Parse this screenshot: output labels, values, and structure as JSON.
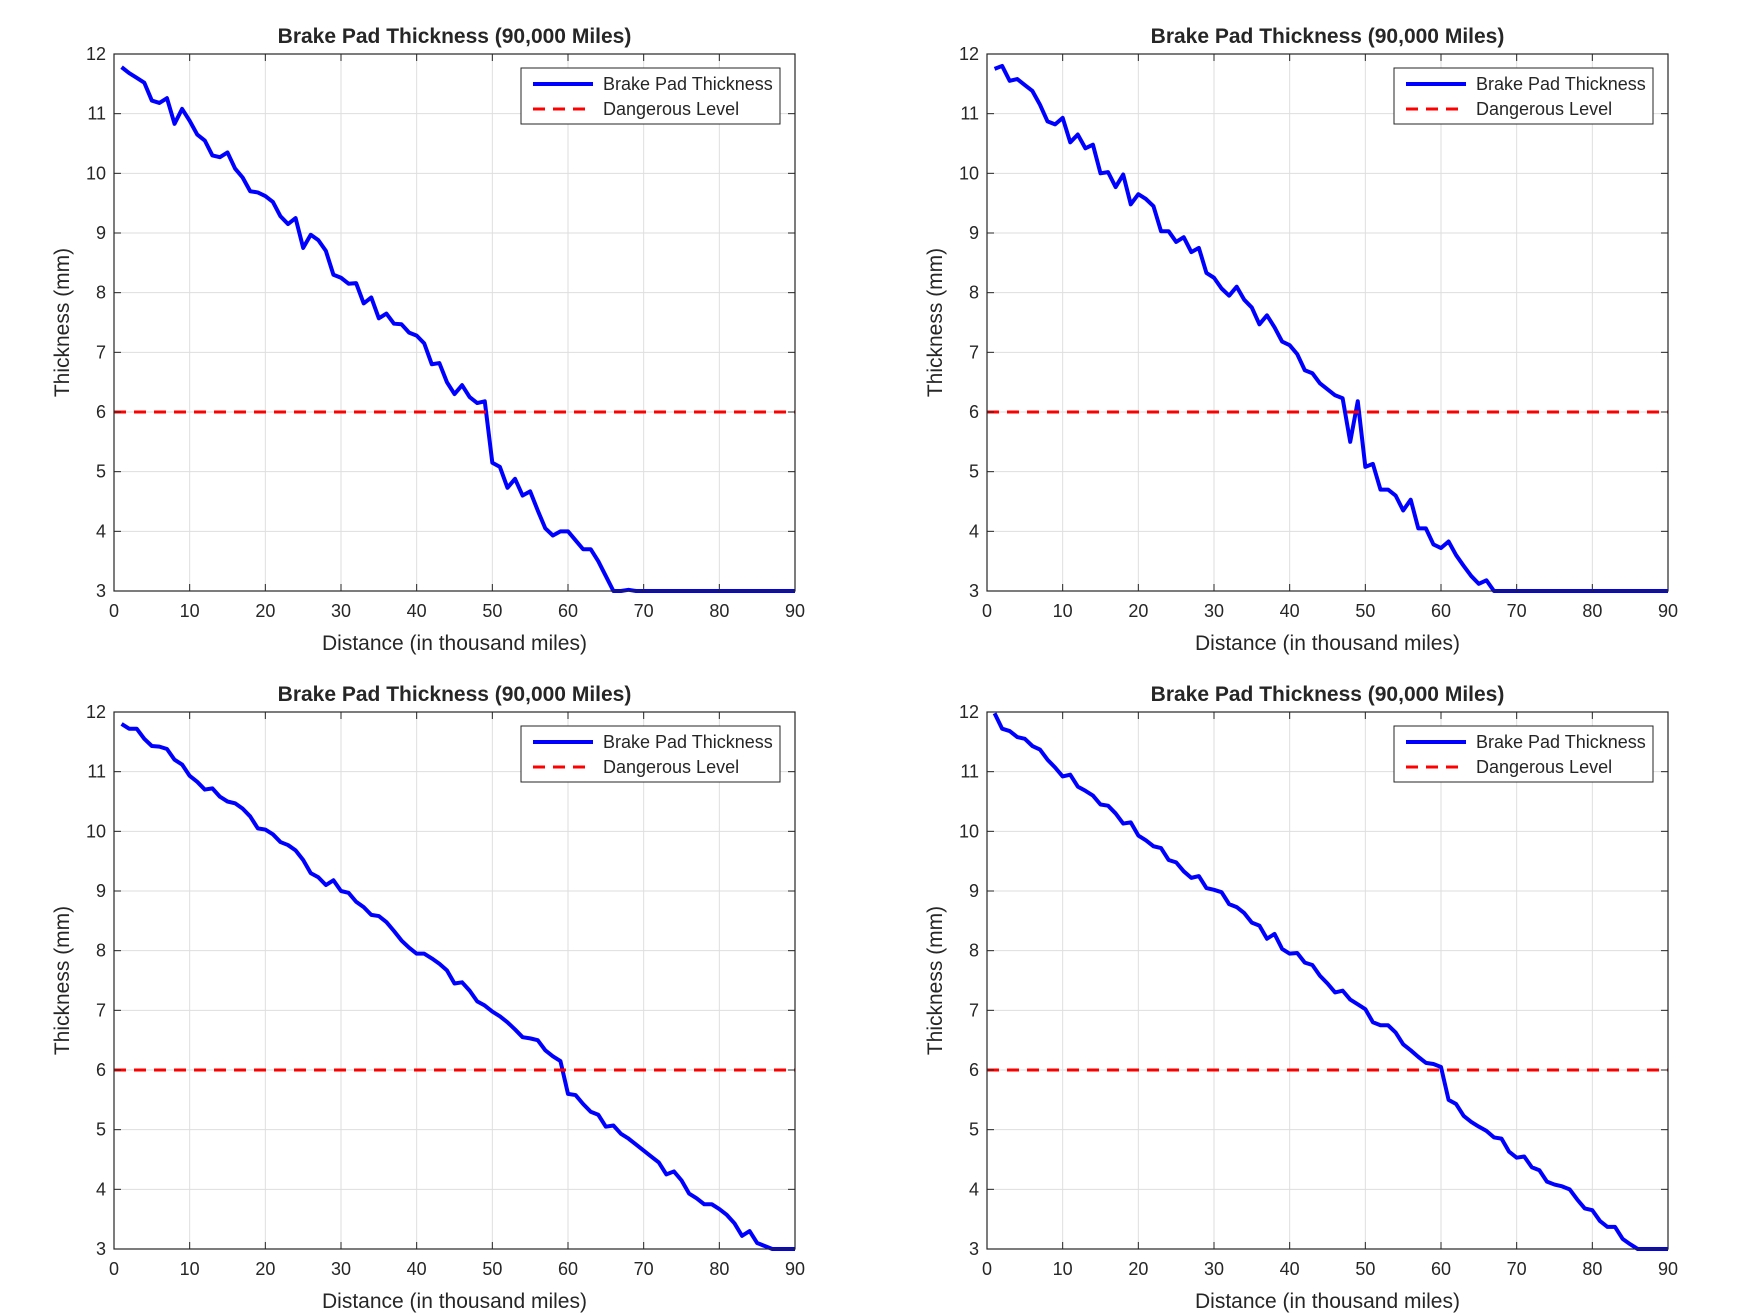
{
  "chart_data": [
    {
      "type": "line",
      "title": "Brake Pad Thickness (90,000 Miles)",
      "xlabel": "Distance (in thousand miles)",
      "ylabel": "Thickness (mm)",
      "xlim": [
        0,
        90
      ],
      "ylim": [
        3,
        12
      ],
      "xticks": [
        "0",
        "10",
        "20",
        "30",
        "40",
        "50",
        "60",
        "70",
        "80",
        "90"
      ],
      "yticks": [
        "3",
        "4",
        "5",
        "6",
        "7",
        "8",
        "9",
        "10",
        "11",
        "12"
      ],
      "grid": true,
      "legend_position": "top-right",
      "series": [
        {
          "name": "Brake Pad Thickness",
          "color": "#0000ff",
          "style": "solid",
          "x": [
            1,
            2,
            3,
            4,
            5,
            6,
            7,
            8,
            9,
            10,
            11,
            12,
            13,
            14,
            15,
            16,
            17,
            18,
            19,
            20,
            21,
            22,
            23,
            24,
            25,
            26,
            27,
            28,
            29,
            30,
            31,
            32,
            33,
            34,
            35,
            36,
            37,
            38,
            39,
            40,
            41,
            42,
            43,
            44,
            45,
            46,
            47,
            48,
            49,
            50,
            51,
            52,
            53,
            54,
            55,
            56,
            57,
            58,
            59,
            60,
            61,
            62,
            63,
            64,
            65,
            66,
            67,
            68,
            69,
            70,
            71,
            72,
            73,
            74,
            75,
            76,
            77,
            78,
            79,
            80,
            81,
            82,
            83,
            84,
            85,
            86,
            87,
            88,
            89,
            90
          ],
          "y": [
            11.78,
            11.68,
            11.6,
            11.52,
            11.22,
            11.18,
            11.26,
            10.83,
            11.08,
            10.88,
            10.65,
            10.55,
            10.3,
            10.27,
            10.35,
            10.08,
            9.93,
            9.7,
            9.68,
            9.62,
            9.52,
            9.28,
            9.15,
            9.25,
            8.75,
            8.97,
            8.88,
            8.7,
            8.3,
            8.25,
            8.15,
            8.16,
            7.82,
            7.92,
            7.57,
            7.65,
            7.48,
            7.47,
            7.33,
            7.28,
            7.15,
            6.8,
            6.82,
            6.5,
            6.3,
            6.45,
            6.25,
            6.15,
            6.18,
            5.15,
            5.08,
            4.73,
            4.88,
            4.6,
            4.67,
            4.35,
            4.05,
            3.93,
            4.0,
            4.0,
            3.85,
            3.7,
            3.7,
            3.5,
            3.25,
            3.0,
            3.0,
            3.02,
            3.0,
            3.0,
            3.0,
            3.0,
            3.0,
            3.0,
            3.0,
            3.0,
            3.0,
            3.0,
            3.0,
            3.0,
            3.0,
            3.0,
            3.0,
            3.0,
            3.0,
            3.0,
            3.0,
            3.0,
            3.0,
            3.0
          ]
        },
        {
          "name": "Dangerous Level",
          "color": "#ff0000",
          "style": "dashed",
          "x": [
            0,
            90
          ],
          "y": [
            6,
            6
          ]
        }
      ]
    },
    {
      "type": "line",
      "title": "Brake Pad Thickness (90,000 Miles)",
      "xlabel": "Distance (in thousand miles)",
      "ylabel": "Thickness (mm)",
      "xlim": [
        0,
        90
      ],
      "ylim": [
        3,
        12
      ],
      "xticks": [
        "0",
        "10",
        "20",
        "30",
        "40",
        "50",
        "60",
        "70",
        "80",
        "90"
      ],
      "yticks": [
        "3",
        "4",
        "5",
        "6",
        "7",
        "8",
        "9",
        "10",
        "11",
        "12"
      ],
      "grid": true,
      "legend_position": "top-right",
      "series": [
        {
          "name": "Brake Pad Thickness",
          "color": "#0000ff",
          "style": "solid",
          "x": [
            1,
            2,
            3,
            4,
            5,
            6,
            7,
            8,
            9,
            10,
            11,
            12,
            13,
            14,
            15,
            16,
            17,
            18,
            19,
            20,
            21,
            22,
            23,
            24,
            25,
            26,
            27,
            28,
            29,
            30,
            31,
            32,
            33,
            34,
            35,
            36,
            37,
            38,
            39,
            40,
            41,
            42,
            43,
            44,
            45,
            46,
            47,
            48,
            49,
            50,
            51,
            52,
            53,
            54,
            55,
            56,
            57,
            58,
            59,
            60,
            61,
            62,
            63,
            64,
            65,
            66,
            67,
            68,
            69,
            70,
            71,
            72,
            73,
            74,
            75,
            76,
            77,
            78,
            79,
            80,
            81,
            82,
            83,
            84,
            85,
            86,
            87,
            88,
            89,
            90
          ],
          "y": [
            11.75,
            11.8,
            11.55,
            11.58,
            11.48,
            11.38,
            11.15,
            10.87,
            10.82,
            10.93,
            10.52,
            10.65,
            10.42,
            10.48,
            10.0,
            10.02,
            9.77,
            9.98,
            9.48,
            9.65,
            9.57,
            9.45,
            9.03,
            9.03,
            8.85,
            8.93,
            8.68,
            8.75,
            8.33,
            8.25,
            8.07,
            7.95,
            8.1,
            7.88,
            7.75,
            7.47,
            7.62,
            7.42,
            7.18,
            7.12,
            6.97,
            6.7,
            6.65,
            6.48,
            6.38,
            6.28,
            6.23,
            5.5,
            6.18,
            5.08,
            5.13,
            4.7,
            4.7,
            4.6,
            4.35,
            4.53,
            4.05,
            4.05,
            3.78,
            3.72,
            3.83,
            3.6,
            3.42,
            3.25,
            3.12,
            3.18,
            3.0,
            3.0,
            3.0,
            3.0,
            3.0,
            3.0,
            3.0,
            3.0,
            3.0,
            3.0,
            3.0,
            3.0,
            3.0,
            3.0,
            3.0,
            3.0,
            3.0,
            3.0,
            3.0,
            3.0,
            3.0,
            3.0,
            3.0,
            3.0
          ]
        },
        {
          "name": "Dangerous Level",
          "color": "#ff0000",
          "style": "dashed",
          "x": [
            0,
            90
          ],
          "y": [
            6,
            6
          ]
        }
      ]
    },
    {
      "type": "line",
      "title": "Brake Pad Thickness (90,000 Miles)",
      "xlabel": "Distance (in thousand miles)",
      "ylabel": "Thickness (mm)",
      "xlim": [
        0,
        90
      ],
      "ylim": [
        3,
        12
      ],
      "xticks": [
        "0",
        "10",
        "20",
        "30",
        "40",
        "50",
        "60",
        "70",
        "80",
        "90"
      ],
      "yticks": [
        "3",
        "4",
        "5",
        "6",
        "7",
        "8",
        "9",
        "10",
        "11",
        "12"
      ],
      "grid": true,
      "legend_position": "top-right",
      "series": [
        {
          "name": "Brake Pad Thickness",
          "color": "#0000ff",
          "style": "solid",
          "x": [
            1,
            2,
            3,
            4,
            5,
            6,
            7,
            8,
            9,
            10,
            11,
            12,
            13,
            14,
            15,
            16,
            17,
            18,
            19,
            20,
            21,
            22,
            23,
            24,
            25,
            26,
            27,
            28,
            29,
            30,
            31,
            32,
            33,
            34,
            35,
            36,
            37,
            38,
            39,
            40,
            41,
            42,
            43,
            44,
            45,
            46,
            47,
            48,
            49,
            50,
            51,
            52,
            53,
            54,
            55,
            56,
            57,
            58,
            59,
            60,
            61,
            62,
            63,
            64,
            65,
            66,
            67,
            68,
            69,
            70,
            71,
            72,
            73,
            74,
            75,
            76,
            77,
            78,
            79,
            80,
            81,
            82,
            83,
            84,
            85,
            86,
            87,
            88,
            89,
            90
          ],
          "y": [
            11.8,
            11.72,
            11.72,
            11.55,
            11.43,
            11.42,
            11.38,
            11.2,
            11.12,
            10.93,
            10.83,
            10.7,
            10.72,
            10.58,
            10.5,
            10.47,
            10.38,
            10.25,
            10.05,
            10.03,
            9.95,
            9.82,
            9.77,
            9.68,
            9.52,
            9.3,
            9.23,
            9.1,
            9.18,
            9.0,
            8.97,
            8.82,
            8.73,
            8.6,
            8.58,
            8.48,
            8.33,
            8.17,
            8.05,
            7.95,
            7.95,
            7.87,
            7.78,
            7.67,
            7.45,
            7.47,
            7.33,
            7.15,
            7.08,
            6.98,
            6.9,
            6.8,
            6.68,
            6.55,
            6.53,
            6.5,
            6.33,
            6.23,
            6.15,
            5.6,
            5.58,
            5.43,
            5.3,
            5.25,
            5.05,
            5.07,
            4.93,
            4.85,
            4.75,
            4.65,
            4.55,
            4.45,
            4.25,
            4.3,
            4.15,
            3.93,
            3.85,
            3.75,
            3.75,
            3.67,
            3.57,
            3.43,
            3.22,
            3.3,
            3.1,
            3.05,
            3.0,
            3.0,
            3.0,
            3.0
          ]
        },
        {
          "name": "Dangerous Level",
          "color": "#ff0000",
          "style": "dashed",
          "x": [
            0,
            90
          ],
          "y": [
            6,
            6
          ]
        }
      ]
    },
    {
      "type": "line",
      "title": "Brake Pad Thickness (90,000 Miles)",
      "xlabel": "Distance (in thousand miles)",
      "ylabel": "Thickness (mm)",
      "xlim": [
        0,
        90
      ],
      "ylim": [
        3,
        12
      ],
      "xticks": [
        "0",
        "10",
        "20",
        "30",
        "40",
        "50",
        "60",
        "70",
        "80",
        "90"
      ],
      "yticks": [
        "3",
        "4",
        "5",
        "6",
        "7",
        "8",
        "9",
        "10",
        "11",
        "12"
      ],
      "grid": true,
      "legend_position": "top-right",
      "series": [
        {
          "name": "Brake Pad Thickness",
          "color": "#0000ff",
          "style": "solid",
          "x": [
            1,
            2,
            3,
            4,
            5,
            6,
            7,
            8,
            9,
            10,
            11,
            12,
            13,
            14,
            15,
            16,
            17,
            18,
            19,
            20,
            21,
            22,
            23,
            24,
            25,
            26,
            27,
            28,
            29,
            30,
            31,
            32,
            33,
            34,
            35,
            36,
            37,
            38,
            39,
            40,
            41,
            42,
            43,
            44,
            45,
            46,
            47,
            48,
            49,
            50,
            51,
            52,
            53,
            54,
            55,
            56,
            57,
            58,
            59,
            60,
            61,
            62,
            63,
            64,
            65,
            66,
            67,
            68,
            69,
            70,
            71,
            72,
            73,
            74,
            75,
            76,
            77,
            78,
            79,
            80,
            81,
            82,
            83,
            84,
            85,
            86,
            87,
            88,
            89,
            90
          ],
          "y": [
            11.98,
            11.72,
            11.68,
            11.58,
            11.55,
            11.43,
            11.37,
            11.2,
            11.07,
            10.92,
            10.95,
            10.75,
            10.68,
            10.6,
            10.45,
            10.43,
            10.3,
            10.13,
            10.15,
            9.93,
            9.85,
            9.75,
            9.72,
            9.52,
            9.48,
            9.33,
            9.22,
            9.25,
            9.05,
            9.02,
            8.98,
            8.78,
            8.73,
            8.63,
            8.47,
            8.42,
            8.2,
            8.28,
            8.03,
            7.95,
            7.96,
            7.8,
            7.76,
            7.58,
            7.45,
            7.3,
            7.33,
            7.18,
            7.1,
            7.02,
            6.8,
            6.75,
            6.75,
            6.63,
            6.43,
            6.33,
            6.22,
            6.12,
            6.1,
            6.05,
            5.5,
            5.43,
            5.23,
            5.13,
            5.05,
            4.98,
            4.87,
            4.85,
            4.63,
            4.53,
            4.55,
            4.37,
            4.32,
            4.13,
            4.08,
            4.05,
            4.0,
            3.83,
            3.68,
            3.65,
            3.47,
            3.37,
            3.37,
            3.17,
            3.08,
            3.0,
            3.0,
            3.0,
            3.0,
            3.0
          ]
        },
        {
          "name": "Dangerous Level",
          "color": "#ff0000",
          "style": "dashed",
          "x": [
            0,
            90
          ],
          "y": [
            6,
            6
          ]
        }
      ]
    }
  ]
}
